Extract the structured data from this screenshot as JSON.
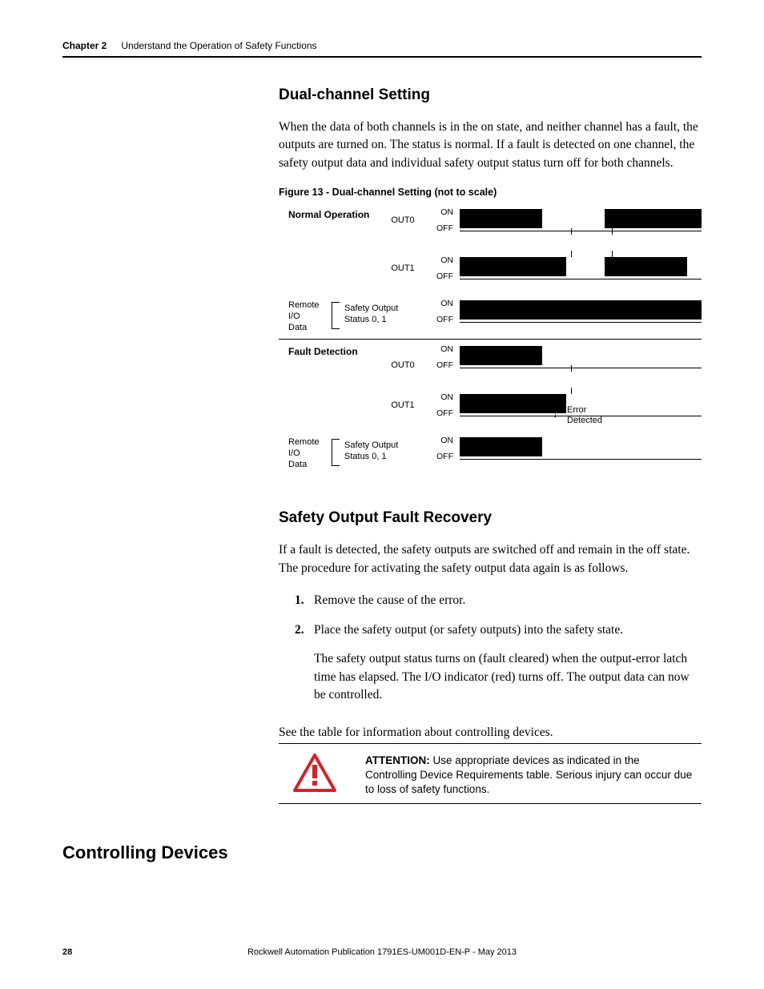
{
  "header": {
    "chapter": "Chapter 2",
    "title": "Understand the Operation of Safety Functions"
  },
  "s1": {
    "heading": "Dual-channel Setting",
    "para": "When the data of both channels is in the on state, and neither channel has a fault, the outputs are turned on. The status is normal. If a fault is detected on one channel, the safety output data and individual safety output status turn off for both channels.",
    "fig_caption": "Figure 13 - Dual-channel Setting (not to scale)"
  },
  "timing": {
    "normal_label": "Normal Operation",
    "fault_label": "Fault Detection",
    "out0": "OUT0",
    "out1": "OUT1",
    "on": "ON",
    "off": "OFF",
    "remote": "Remote\nI/O\nData",
    "safety_output": "Safety Output\nStatus 0, 1",
    "error_detected": "Error\nDetected",
    "arrow": "↓",
    "normal": {
      "out0_blocks": [
        [
          0,
          34
        ],
        [
          60,
          100
        ]
      ],
      "out0_ticks": [
        46,
        63
      ],
      "out1_ticks_up": [
        46,
        63
      ],
      "out1_blocks": [
        [
          0,
          44
        ],
        [
          60,
          94
        ]
      ],
      "status_blocks": [
        [
          0,
          100
        ]
      ]
    },
    "fault": {
      "out0_blocks": [
        [
          0,
          34
        ]
      ],
      "out0_ticks": [
        46
      ],
      "out1_ticks_up": [
        46
      ],
      "out1_blocks": [
        [
          0,
          44
        ]
      ],
      "status_blocks": [
        [
          0,
          34
        ]
      ]
    }
  },
  "s2": {
    "heading": "Safety Output Fault Recovery",
    "para": "If a fault is detected, the safety outputs are switched off and remain in the off state. The procedure for activating the safety output data again is as follows.",
    "step1": "Remove the cause of the error.",
    "step2": "Place the safety output (or safety outputs) into the safety state.",
    "step2_sub": "The safety output status turns on (fault cleared) when the output-error latch time has elapsed. The I/O indicator (red) turns off. The output data can now be controlled."
  },
  "cd": {
    "side_heading": "Controlling Devices",
    "intro": "See the table for information about controlling devices.",
    "attention_label": "ATTENTION:",
    "attention_body": " Use appropriate devices as indicated in the Controlling Device Requirements table. Serious injury can occur due to loss of safety functions."
  },
  "footer": {
    "page": "28",
    "pub": "Rockwell Automation Publication 1791ES-UM001D-EN-P - May 2013"
  },
  "style": {
    "warn_stroke": "#d1232a",
    "warn_fill": "#ffffff",
    "block_color": "#000000"
  }
}
